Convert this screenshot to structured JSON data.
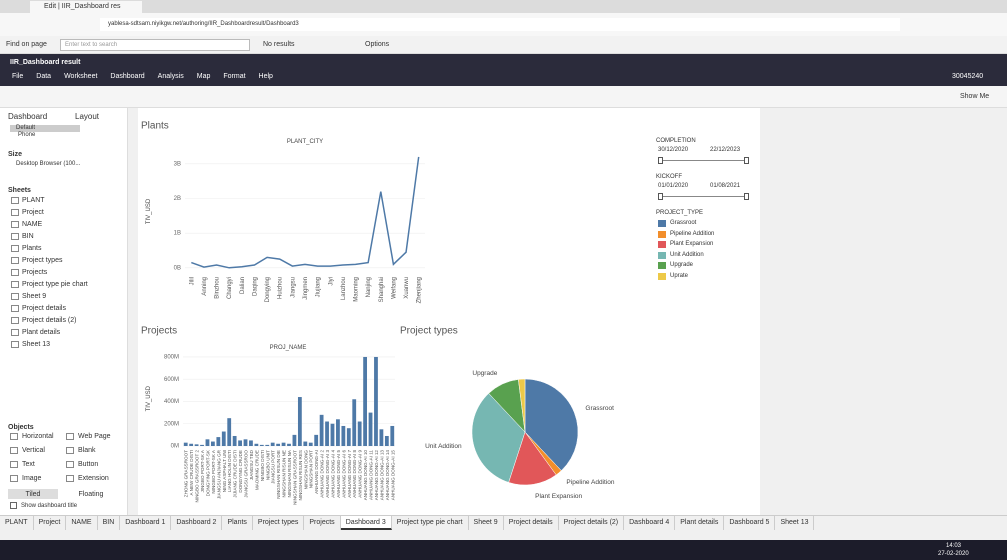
{
  "browser": {
    "tab_title": "Edit | IIR_Dashboard res",
    "url": "yablesa-sdtsam.niyikgw.net/authoring/IIR_Dashboardresult/Dashboard3"
  },
  "find_bar": {
    "label": "Find on page",
    "placeholder": "Enter text to search",
    "status": "No results",
    "options": "Options"
  },
  "app": {
    "title": "IIR_Dashboard result",
    "menu": [
      "File",
      "Data",
      "Worksheet",
      "Dashboard",
      "Analysis",
      "Map",
      "Format",
      "Help"
    ],
    "user": "30045240",
    "show_me": "Show Me"
  },
  "left_panel": {
    "tabs": [
      "Dashboard",
      "Layout"
    ],
    "devices": [
      "Default",
      "Phone"
    ],
    "size_label": "Size",
    "size_value": "Desktop Browser (100...",
    "sheets_label": "Sheets",
    "sheets": [
      "PLANT",
      "Project",
      "NAME",
      "BIN",
      "Plants",
      "Project types",
      "Projects",
      "Project type pie chart",
      "Sheet 9",
      "Project details",
      "Project details (2)",
      "Plant details",
      "Sheet 13"
    ],
    "objects_label": "Objects",
    "objects": [
      "Horizontal",
      "Web Page",
      "Vertical",
      "Blank",
      "Text",
      "Button",
      "Image",
      "Extension"
    ],
    "layout_modes": [
      "Tiled",
      "Floating"
    ],
    "show_title": "Show dashboard title"
  },
  "filters": {
    "completion": {
      "label": "COMPLETION",
      "start": "30/12/2020",
      "end": "22/12/2023"
    },
    "kickoff": {
      "label": "KICKOFF",
      "start": "01/01/2020",
      "end": "01/08/2021"
    },
    "type_label": "PROJECT_TYPE"
  },
  "chart_data": [
    {
      "type": "line",
      "title": "Plants",
      "x_label": "PLANT_CITY",
      "y_label": "TIV_USD",
      "color": "#4e79a7",
      "grid": true,
      "categories": [
        "Jilil",
        "Anning",
        "Binzhou",
        "Changyi",
        "Dalian",
        "Daqing",
        "Dongying",
        "Huizhou",
        "Jiangsu",
        "Jingmen",
        "Jiujiang",
        "Jiyi",
        "Lanzhou",
        "Maoming",
        "Nanjing",
        "Shanghai",
        "Weifang",
        "Xuanwu",
        "Zhenjiang"
      ],
      "values": [
        150000000,
        20000000,
        80000000,
        0,
        30000000,
        80000000,
        300000000,
        250000000,
        50000000,
        100000000,
        50000000,
        50000000,
        80000000,
        100000000,
        150000000,
        2200000000,
        100000000,
        450000000,
        3200000000
      ],
      "ylim": [
        -150000000,
        3400000000
      ],
      "yticks": [
        {
          "value": 0,
          "label": "0B"
        },
        {
          "value": 1000000000,
          "label": "1B"
        },
        {
          "value": 2000000000,
          "label": "2B"
        },
        {
          "value": 3000000000,
          "label": "3B"
        }
      ]
    },
    {
      "type": "bar",
      "title": "Projects",
      "x_label": "PROJ_NAME",
      "y_label": "TIV_USD",
      "color": "#4e79a7",
      "grid": true,
      "categories": [
        "ZHONG GRASSROOT",
        "A NEW CRUDE DISTI",
        "NINGBO GRASSROOT 2",
        "JINGBO PORT-SK A",
        "DONGYING PORT-SK",
        "NINGBO PORT-SK A",
        "JIANGSU ANJIANG GR",
        "NING ASPHALT UNI",
        "LIANG HOLIN DISTI",
        "JIJIANG CRUDE DISTI",
        "DONGYING CRUDE",
        "JIANGSU GRASSROO",
        "JIANGSU TBD",
        "MAOMING CRUDE",
        "NINGBO DISTI",
        "NINGBO UNIT",
        "JIANGSU PORT",
        "NINGSHAN RISUN DIE",
        "NINGSHAN RISUN NE",
        "NINGSHAN RISUN NA",
        "NINGSHAN GRASSROOT",
        "NINGSHAN RISUN RES",
        "NINGSHAN DONG",
        "NINGSHAN PORT",
        "ANHUANG DONG-AI",
        "ANHUANG DONG-AI 2",
        "ANHUANG DONG-AI 3",
        "ANHUANG DONG-AI 4",
        "ANHUANG DONG-AI 5",
        "ANHUANG DONG-AI 6",
        "ANHUANG DONG-AI 7",
        "ANHUANG DONG-AI 8",
        "ANHUANG DONG-AI 9",
        "ANHUANG DONG-AI 10",
        "ANHUANG DONG-AI 11",
        "ANHUANG DONG-AI 12",
        "ANHUANG DONG-AI 13",
        "ANHUANG DONG-AI 14",
        "ANHUANG DONG-AI 15"
      ],
      "values": [
        30000000,
        20000000,
        15000000,
        10000000,
        60000000,
        40000000,
        80000000,
        130000000,
        250000000,
        90000000,
        50000000,
        60000000,
        50000000,
        20000000,
        10000000,
        10000000,
        30000000,
        20000000,
        30000000,
        20000000,
        100000000,
        440000000,
        40000000,
        30000000,
        100000000,
        280000000,
        220000000,
        200000000,
        240000000,
        180000000,
        160000000,
        420000000,
        220000000,
        800000000,
        300000000,
        800000000,
        150000000,
        90000000,
        180000000
      ],
      "ylim": [
        0,
        850000000
      ],
      "yticks": [
        {
          "value": 0,
          "label": "0M"
        },
        {
          "value": 200000000,
          "label": "200M"
        },
        {
          "value": 400000000,
          "label": "400M"
        },
        {
          "value": 600000000,
          "label": "600M"
        },
        {
          "value": 800000000,
          "label": "800M"
        }
      ]
    },
    {
      "type": "pie",
      "title": "Project types",
      "categories": [
        "Grassroot",
        "Pipeline Addition",
        "Plant Expansion",
        "Unit Addition",
        "Upgrade",
        "Uprate"
      ],
      "slice_labels": [
        "Grassroot",
        "Pipeline Addition",
        "Plant Expansion",
        "Unit Addition",
        "Upgrade",
        null
      ],
      "values": [
        38,
        2,
        15,
        33,
        10,
        2
      ],
      "colors": [
        "#4e79a7",
        "#f28e2b",
        "#e15759",
        "#76b7b2",
        "#59a14f",
        "#edc948"
      ]
    }
  ],
  "sheet_tabs": [
    "PLANT",
    "Project",
    "NAME",
    "BIN",
    "Dashboard 1",
    "Dashboard 2",
    "Plants",
    "Project types",
    "Projects",
    "Dashboard 3",
    "Project type pie chart",
    "Sheet 9",
    "Project details",
    "Project details (2)",
    "Dashboard 4",
    "Plant details",
    "Dashboard 5",
    "Sheet 13"
  ],
  "active_tab": "Dashboard 3",
  "taskbar": {
    "time": "14:03",
    "date": "27-02-2020"
  }
}
